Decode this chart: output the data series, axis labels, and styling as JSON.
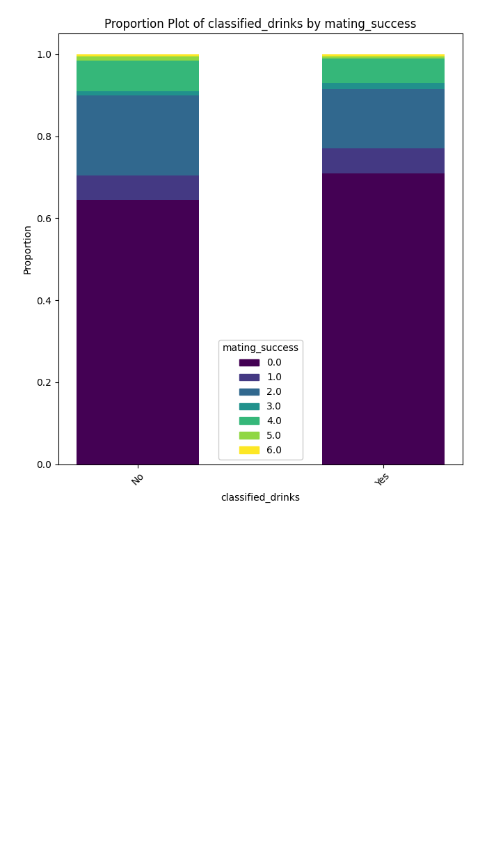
{
  "title": "Proportion Plot of classified_drinks by mating_success",
  "xlabel": "classified_drinks",
  "ylabel": "Proportion",
  "legend_title": "mating_success",
  "categories": [
    "No",
    "Yes"
  ],
  "labels": [
    "0.0",
    "1.0",
    "2.0",
    "3.0",
    "4.0",
    "5.0",
    "6.0"
  ],
  "proportions": {
    "No": [
      0.645,
      0.06,
      0.195,
      0.01,
      0.075,
      0.01,
      0.005
    ],
    "Yes": [
      0.71,
      0.06,
      0.145,
      0.015,
      0.06,
      0.005,
      0.005
    ]
  },
  "figsize": [
    7.0,
    12.12
  ],
  "dpi": 100,
  "bar_width": 0.5
}
